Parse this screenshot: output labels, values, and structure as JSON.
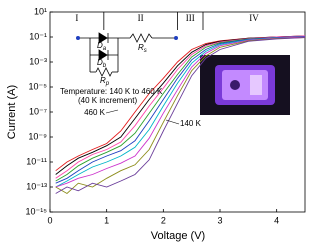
{
  "chart_data": {
    "type": "line",
    "x_label": "Voltage (V)",
    "y_label": "Current (A)",
    "log_y": true,
    "xlim": [
      0,
      4.5
    ],
    "xticks": [
      0,
      1,
      2,
      3,
      4
    ],
    "ylim": [
      1e-15,
      10
    ],
    "yticks": [
      {
        "value": 10,
        "label": "10¹"
      },
      {
        "value": 0.1,
        "label": "10⁻¹"
      },
      {
        "value": 0.001,
        "label": "10⁻³"
      },
      {
        "value": 1e-05,
        "label": "10⁻⁵"
      },
      {
        "value": 1e-07,
        "label": "10⁻⁷"
      },
      {
        "value": 1e-09,
        "label": "10⁻⁹"
      },
      {
        "value": 1e-11,
        "label": "10⁻¹¹"
      },
      {
        "value": 1e-13,
        "label": "10⁻¹³"
      },
      {
        "value": 1e-15,
        "label": "10⁻¹⁵"
      }
    ],
    "x": [
      0.1,
      0.3,
      0.5,
      0.75,
      1,
      1.25,
      1.5,
      1.75,
      2,
      2.25,
      2.5,
      2.75,
      3,
      3.5,
      4,
      4.5
    ],
    "series": [
      {
        "color": "#e41a1c",
        "values": [
          2e-12,
          1e-11,
          3e-11,
          1e-10,
          3e-10,
          3e-09,
          1e-07,
          3e-06,
          5e-05,
          0.001,
          0.01,
          0.03,
          0.05,
          0.08,
          0.1,
          0.12
        ]
      },
      {
        "color": "#000000",
        "values": [
          1e-12,
          5e-12,
          2e-11,
          6e-11,
          2e-10,
          1e-09,
          3e-08,
          1e-06,
          2e-05,
          0.0005,
          0.006,
          0.025,
          0.045,
          0.08,
          0.1,
          0.12
        ]
      },
      {
        "color": "#ff44aa",
        "values": [
          5e-13,
          2e-12,
          1e-11,
          4e-11,
          1e-10,
          4e-10,
          8e-09,
          3e-07,
          8e-06,
          0.00025,
          0.004,
          0.02,
          0.04,
          0.075,
          0.1,
          0.12
        ]
      },
      {
        "color": "#2ca02c",
        "values": [
          3e-13,
          1e-12,
          5e-12,
          2e-11,
          6e-11,
          2e-10,
          2e-09,
          8e-08,
          3e-06,
          0.0001,
          0.0025,
          0.015,
          0.035,
          0.07,
          0.09,
          0.11
        ]
      },
      {
        "color": "#1f3fbf",
        "values": [
          2e-13,
          5e-13,
          2e-12,
          1e-11,
          3e-11,
          8e-11,
          5e-10,
          2e-08,
          1e-06,
          5e-05,
          0.0015,
          0.01,
          0.03,
          0.065,
          0.09,
          0.11
        ]
      },
      {
        "color": "#00b5c8",
        "values": [
          1e-13,
          3e-13,
          1e-12,
          4e-12,
          1e-11,
          3e-11,
          1.5e-10,
          4e-09,
          3e-07,
          2e-05,
          0.0008,
          0.007,
          0.025,
          0.06,
          0.085,
          0.1
        ]
      },
      {
        "color": "#cc33cc",
        "values": [
          1e-13,
          2e-13,
          5e-13,
          1e-12,
          3e-12,
          8e-12,
          3e-11,
          8e-10,
          8e-08,
          6e-06,
          0.0004,
          0.005,
          0.02,
          0.055,
          0.08,
          0.1
        ]
      },
      {
        "color": "#8c8c1a",
        "values": [
          1e-13,
          3e-14,
          2e-13,
          1e-13,
          5e-13,
          2e-12,
          6e-12,
          1e-10,
          1.5e-08,
          2e-06,
          0.0002,
          0.003,
          0.015,
          0.05,
          0.075,
          0.09
        ]
      },
      {
        "color": "#6a3d9a",
        "values": [
          3e-14,
          1e-13,
          5e-14,
          2e-13,
          1e-13,
          3e-13,
          1e-12,
          1.5e-11,
          3e-09,
          5e-07,
          8e-05,
          0.002,
          0.01,
          0.045,
          0.07,
          0.09
        ]
      }
    ],
    "region_bounds": [
      0.95,
      2.25,
      2.7
    ],
    "regions": [
      "I",
      "II",
      "III",
      "IV"
    ],
    "annotations": [
      "Temperature: 140 K to 460 K",
      "(40 K increment)",
      "460 K",
      "140 K"
    ],
    "circuit_labels": [
      {
        "main": "D",
        "sub": "a"
      },
      {
        "main": "D",
        "sub": "b"
      },
      {
        "main": "R",
        "sub": "s"
      },
      {
        "main": "R",
        "sub": "p"
      }
    ]
  }
}
